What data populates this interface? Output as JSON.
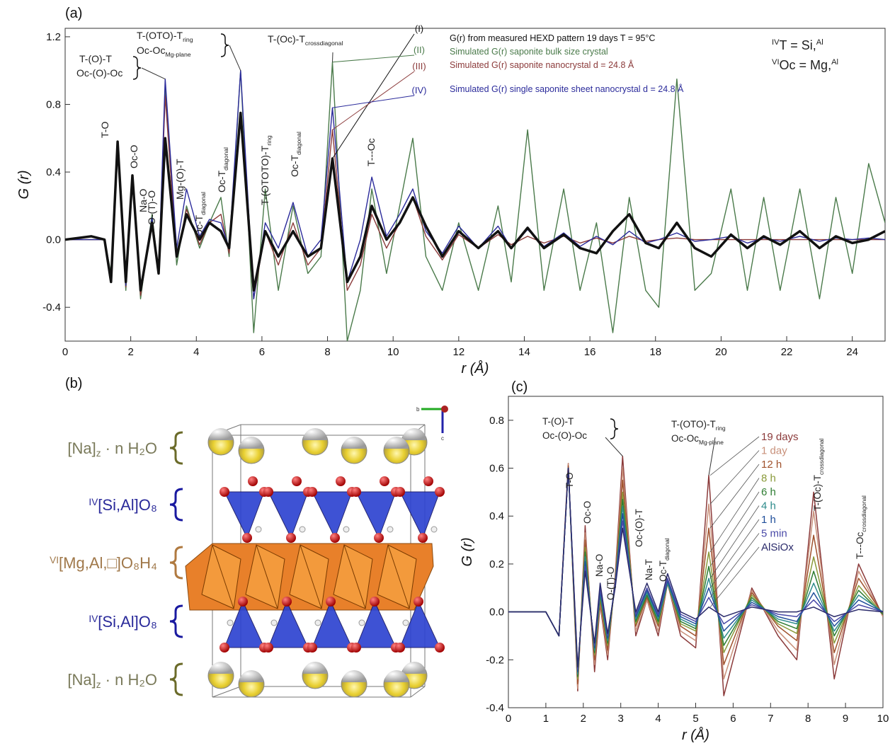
{
  "chart_data": [
    {
      "type": "line",
      "title": "(a)",
      "xlabel": "r (Å)",
      "ylabel": "G (r)",
      "xlim": [
        0,
        25
      ],
      "ylim": [
        -0.6,
        1.25
      ],
      "xticks": [
        0,
        2,
        4,
        6,
        8,
        10,
        12,
        14,
        16,
        18,
        20,
        22,
        24
      ],
      "yticks": [
        -0.4,
        {
          "value": 0,
          "label": "0.0"
        },
        0.4,
        0.8,
        1.2
      ],
      "x": [
        0,
        0.8,
        1.2,
        1.4,
        1.6,
        1.85,
        2.05,
        2.3,
        2.65,
        2.85,
        3.05,
        3.4,
        3.7,
        4.1,
        4.4,
        4.75,
        5.0,
        5.35,
        5.75,
        6.1,
        6.5,
        6.95,
        7.4,
        7.8,
        8.15,
        8.6,
        9.0,
        9.35,
        9.8,
        10.2,
        10.6,
        11.0,
        11.5,
        12.0,
        12.6,
        13.2,
        13.6,
        14.1,
        14.6,
        15.2,
        15.7,
        16.2,
        16.7,
        17.2,
        17.7,
        18.1,
        18.65,
        19.2,
        19.7,
        20.3,
        20.8,
        21.3,
        21.8,
        22.4,
        23.0,
        23.5,
        24.0,
        24.5,
        25
      ],
      "series": [
        {
          "name": "G(r) from measured HEXD pattern 19 days T = 95°C",
          "label": "(I)",
          "color": "#111111",
          "values": [
            0,
            0.02,
            0,
            -0.25,
            0.58,
            -0.25,
            0.38,
            -0.3,
            0.1,
            -0.2,
            0.6,
            -0.1,
            0.15,
            0.0,
            0.1,
            0.05,
            -0.05,
            0.75,
            -0.3,
            0.05,
            -0.1,
            0.05,
            -0.1,
            -0.05,
            0.48,
            -0.25,
            -0.1,
            0.2,
            0.0,
            0.1,
            0.25,
            0.08,
            -0.1,
            0.05,
            -0.05,
            0.05,
            -0.05,
            0.07,
            -0.05,
            0.03,
            -0.05,
            -0.08,
            0.05,
            0.15,
            -0.02,
            -0.05,
            0.1,
            -0.05,
            -0.1,
            0.03,
            -0.05,
            0.02,
            -0.03,
            0.05,
            -0.05,
            0.02,
            -0.02,
            0.0,
            0.05
          ]
        },
        {
          "name": "Simulated G(r) saponite bulk size crystal",
          "label": "(II)",
          "color": "#4a7a4a",
          "values": [
            0,
            0,
            0,
            -0.2,
            0.55,
            -0.3,
            0.35,
            -0.35,
            0.15,
            -0.2,
            0.9,
            -0.15,
            0.2,
            -0.05,
            0.1,
            0.25,
            -0.1,
            1.0,
            -0.55,
            0.3,
            -0.3,
            0.2,
            -0.2,
            -0.1,
            1.05,
            -0.6,
            -0.3,
            0.3,
            -0.2,
            0.2,
            0.6,
            -0.1,
            -0.3,
            0.1,
            -0.3,
            0.2,
            -0.25,
            0.65,
            -0.3,
            0.3,
            -0.3,
            0.1,
            -0.55,
            0.25,
            -0.3,
            -0.4,
            0.95,
            -0.3,
            -0.2,
            0.3,
            -0.3,
            0.25,
            -0.3,
            0.3,
            -0.35,
            0.25,
            -0.2,
            0.45,
            0.1
          ]
        },
        {
          "name": "Simulated G(r) saponite nanocrystal d = 24.8 Å",
          "label": "(III)",
          "color": "#8b3a3a",
          "values": [
            0,
            0,
            0,
            -0.25,
            0.57,
            -0.28,
            0.37,
            -0.33,
            0.12,
            -0.2,
            0.85,
            -0.1,
            0.18,
            -0.03,
            0.1,
            0.15,
            -0.08,
            0.75,
            -0.35,
            0.05,
            -0.15,
            0.1,
            -0.15,
            -0.05,
            0.65,
            -0.3,
            -0.15,
            0.15,
            -0.05,
            0.1,
            0.25,
            0.02,
            -0.12,
            0.03,
            -0.05,
            0.03,
            -0.03,
            0.02,
            -0.02,
            0.02,
            -0.02,
            0.01,
            -0.02,
            0.02,
            -0.01,
            0,
            0.01,
            0,
            0,
            0,
            0,
            0,
            0,
            0,
            0,
            0,
            0,
            0,
            0
          ]
        },
        {
          "name": "Simulated G(r) single saponite sheet nanocrystal d = 24.8 Å",
          "label": "(IV)",
          "color": "#2b2b9b",
          "values": [
            0,
            0,
            0,
            -0.25,
            0.58,
            -0.27,
            0.38,
            -0.3,
            0.13,
            -0.2,
            0.95,
            -0.05,
            0.3,
            0.02,
            0.12,
            0.1,
            -0.05,
            1.0,
            -0.35,
            0.1,
            -0.05,
            0.22,
            -0.1,
            0.0,
            0.78,
            -0.25,
            0.0,
            0.37,
            0.02,
            0.15,
            0.3,
            0.05,
            -0.08,
            0.08,
            -0.05,
            0.08,
            -0.05,
            0.06,
            -0.04,
            0.04,
            -0.04,
            0.02,
            -0.03,
            0.05,
            -0.02,
            0.0,
            0.04,
            -0.01,
            0.0,
            0.02,
            -0.02,
            0.01,
            -0.01,
            0.02,
            -0.01,
            0.01,
            0.0,
            0.01,
            0.0
          ]
        }
      ],
      "annotations": [
        {
          "text": "T-(O)-T"
        },
        {
          "text": "Oc-(O)-Oc"
        },
        {
          "text": "T-(OTO)-T",
          "sub": "ring"
        },
        {
          "text": "Oc-Oc",
          "sub": "Mg-plane"
        },
        {
          "text": "T-(Oc)-T",
          "sub": "crossdiagonal"
        },
        {
          "text": "T-O"
        },
        {
          "text": "Oc-O"
        },
        {
          "text": "Na-O"
        },
        {
          "text": "O-(T)-O"
        },
        {
          "text": "Mg-(O)-T"
        },
        {
          "text": "Oc-T",
          "sub": "diagonal"
        },
        {
          "text": "Oc-T",
          "sub": "diagonal"
        },
        {
          "text": "T-(OTOTO)-T",
          "sub": "ring"
        },
        {
          "text": "Oc-T",
          "sub": "diagonal"
        },
        {
          "text": "T---Oc"
        }
      ],
      "notes": [
        {
          "main": "T   =  Si,",
          "sup": "IV",
          "after": "Al"
        },
        {
          "main": "Oc = Mg,",
          "sup": "VI",
          "after": "Al"
        }
      ]
    },
    {
      "type": "line",
      "title": "(c)",
      "xlabel": "r (Å)",
      "ylabel": "G (r)",
      "xlim": [
        0,
        10
      ],
      "ylim": [
        -0.4,
        0.9
      ],
      "xticks": [
        0,
        1,
        2,
        3,
        4,
        5,
        6,
        7,
        8,
        9,
        10
      ],
      "yticks": [
        -0.4,
        -0.2,
        {
          "value": 0,
          "label": "0.0"
        },
        0.2,
        0.4,
        0.6,
        0.8
      ],
      "x": [
        0,
        1.0,
        1.35,
        1.6,
        1.85,
        2.05,
        2.3,
        2.45,
        2.65,
        2.85,
        3.05,
        3.4,
        3.7,
        4.0,
        4.25,
        4.6,
        5.0,
        5.35,
        5.75,
        6.5,
        7.2,
        7.7,
        8.15,
        8.7,
        9.35,
        10
      ],
      "series": [
        {
          "name": "19 days",
          "color": "#8b3a3a",
          "values": [
            0,
            0,
            -0.1,
            0.62,
            -0.33,
            0.36,
            -0.25,
            0.03,
            -0.2,
            0.15,
            0.65,
            -0.1,
            0.05,
            -0.1,
            0.12,
            -0.1,
            -0.15,
            0.57,
            -0.35,
            0.1,
            -0.1,
            -0.2,
            0.5,
            -0.28,
            0.2,
            -0.02
          ]
        },
        {
          "name": "1 day",
          "color": "#c8907a",
          "values": [
            0,
            0,
            -0.1,
            0.62,
            -0.32,
            0.33,
            -0.22,
            0.04,
            -0.18,
            0.14,
            0.6,
            -0.08,
            0.05,
            -0.08,
            0.12,
            -0.08,
            -0.12,
            0.45,
            -0.28,
            0.09,
            -0.08,
            -0.16,
            0.42,
            -0.22,
            0.17,
            -0.02
          ]
        },
        {
          "name": "12 h",
          "color": "#a0522d",
          "values": [
            0,
            0,
            -0.1,
            0.61,
            -0.3,
            0.3,
            -0.2,
            0.05,
            -0.16,
            0.13,
            0.55,
            -0.06,
            0.06,
            -0.06,
            0.12,
            -0.06,
            -0.1,
            0.35,
            -0.22,
            0.08,
            -0.06,
            -0.12,
            0.32,
            -0.17,
            0.14,
            -0.01
          ]
        },
        {
          "name": "8 h",
          "color": "#8a9a3a",
          "values": [
            0,
            0,
            -0.1,
            0.6,
            -0.28,
            0.27,
            -0.18,
            0.06,
            -0.14,
            0.12,
            0.5,
            -0.05,
            0.07,
            -0.05,
            0.12,
            -0.05,
            -0.08,
            0.25,
            -0.17,
            0.07,
            -0.05,
            -0.09,
            0.23,
            -0.13,
            0.11,
            -0.01
          ]
        },
        {
          "name": "6 h",
          "color": "#2e7d32",
          "values": [
            0,
            0,
            -0.1,
            0.6,
            -0.27,
            0.25,
            -0.17,
            0.07,
            -0.13,
            0.12,
            0.47,
            -0.04,
            0.07,
            -0.04,
            0.12,
            -0.04,
            -0.07,
            0.19,
            -0.14,
            0.06,
            -0.04,
            -0.07,
            0.17,
            -0.1,
            0.09,
            -0.01
          ]
        },
        {
          "name": "4 h",
          "color": "#2e8b8b",
          "values": [
            0,
            0,
            -0.1,
            0.6,
            -0.26,
            0.23,
            -0.16,
            0.08,
            -0.12,
            0.12,
            0.44,
            -0.03,
            0.08,
            -0.03,
            0.12,
            -0.03,
            -0.06,
            0.14,
            -0.11,
            0.05,
            -0.03,
            -0.05,
            0.12,
            -0.08,
            0.07,
            0
          ]
        },
        {
          "name": "1 h",
          "color": "#1f4e9a",
          "values": [
            0,
            0,
            -0.1,
            0.6,
            -0.25,
            0.21,
            -0.15,
            0.09,
            -0.11,
            0.12,
            0.41,
            -0.02,
            0.09,
            -0.02,
            0.13,
            -0.02,
            -0.05,
            0.1,
            -0.08,
            0.04,
            -0.02,
            -0.04,
            0.08,
            -0.06,
            0.05,
            0
          ]
        },
        {
          "name": "5 min",
          "color": "#4a4aa8",
          "values": [
            0,
            0,
            -0.1,
            0.6,
            -0.24,
            0.19,
            -0.14,
            0.1,
            -0.1,
            0.11,
            0.38,
            -0.01,
            0.1,
            -0.01,
            0.14,
            -0.01,
            -0.04,
            0.06,
            -0.05,
            0.03,
            -0.01,
            -0.02,
            0.05,
            -0.04,
            0.03,
            0
          ]
        },
        {
          "name": "AlSiOx",
          "color": "#2a2a6a",
          "values": [
            0,
            0,
            -0.1,
            0.6,
            -0.23,
            0.17,
            -0.13,
            0.12,
            -0.09,
            0.1,
            0.35,
            0.0,
            0.12,
            0.0,
            0.16,
            0.0,
            -0.03,
            0.02,
            -0.02,
            0.02,
            0.0,
            0.0,
            0.02,
            -0.02,
            0.01,
            0
          ]
        }
      ],
      "annotations": [
        {
          "text": "T-(O)-T"
        },
        {
          "text": "Oc-(O)-Oc"
        },
        {
          "text": "T-O"
        },
        {
          "text": "Oc-O"
        },
        {
          "text": "Na-O"
        },
        {
          "text": "O-(T)-O"
        },
        {
          "text": "Oc-(O)-T"
        },
        {
          "text": "Na-T"
        },
        {
          "text": "Oc-T",
          "sub": "diagonal"
        },
        {
          "text": "T-(OTO)-T",
          "sub": "ring"
        },
        {
          "text": "Oc-Oc",
          "sub": "Mg-plane"
        },
        {
          "text": "T-(Oc)-T",
          "sub": "crossdiagonal"
        },
        {
          "text": "T---Oc",
          "sub": "crossdiagonal"
        }
      ]
    }
  ],
  "structure": {
    "title": "(b)",
    "axes": [
      "b",
      "c"
    ],
    "labels": [
      {
        "main": "[Na]",
        "sub": "z",
        "after": " · n H₂O"
      },
      {
        "sup": "IV",
        "main": "[Si,Al]O₈"
      },
      {
        "sup": "VI",
        "main": "[Mg,Al,□]O₈H₄"
      },
      {
        "sup": "IV",
        "main": "[Si,Al]O₈"
      },
      {
        "main": "[Na]",
        "sub": "z",
        "after": " · n H₂O"
      }
    ]
  }
}
